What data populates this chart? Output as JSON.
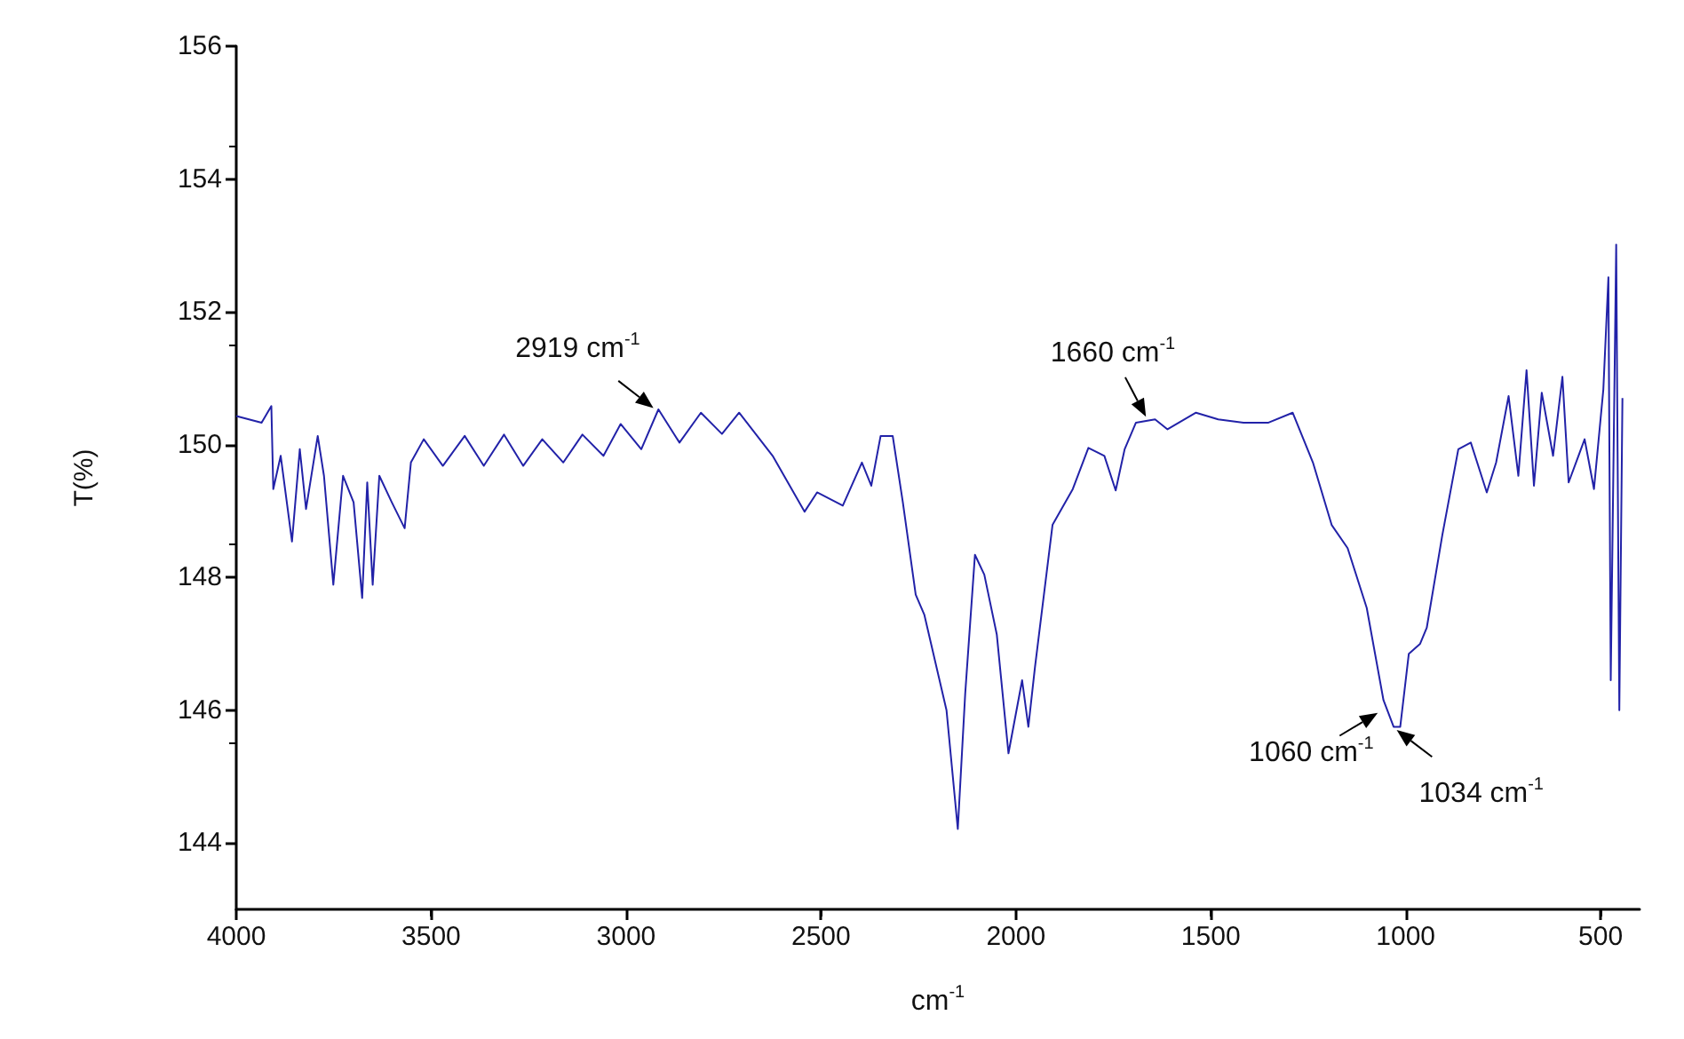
{
  "chart_data": {
    "type": "line",
    "xlabel": "cm$^{-1}$",
    "ylabel": "T(%)",
    "xlim": [
      4000,
      400
    ],
    "ylim": [
      143,
      156
    ],
    "xticks": [
      4000,
      3500,
      3000,
      2500,
      2000,
      1500,
      1000,
      500
    ],
    "yticks": [
      144,
      146,
      148,
      150,
      152,
      154,
      156
    ],
    "grid": false,
    "marker": "none",
    "line_style": "solid",
    "annotations": [
      {
        "text": "2919 cm$^{-1}$",
        "x": 2919,
        "y": 150.5
      },
      {
        "text": "1660 cm$^{-1}$",
        "x": 1660,
        "y": 150.35
      },
      {
        "text": "1060 cm$^{-1}$",
        "x": 1060,
        "y": 146.0
      },
      {
        "text": "1034 cm$^{-1}$",
        "x": 1034,
        "y": 145.75
      }
    ],
    "series": [
      {
        "color": "#2222a8",
        "x": [
          4000,
          3935,
          3910,
          3905,
          3886,
          3857,
          3837,
          3821,
          3791,
          3775,
          3751,
          3726,
          3699,
          3677,
          3664,
          3650,
          3633,
          3601,
          3568,
          3552,
          3519,
          3470,
          3414,
          3365,
          3313,
          3264,
          3215,
          3161,
          3112,
          3058,
          3014,
          2961,
          2917,
          2863,
          2808,
          2754,
          2710,
          2624,
          2542,
          2510,
          2444,
          2395,
          2371,
          2347,
          2316,
          2290,
          2257,
          2235,
          2178,
          2149,
          2130,
          2105,
          2081,
          2049,
          2019,
          1984,
          1968,
          1951,
          1906,
          1854,
          1814,
          1773,
          1744,
          1721,
          1692,
          1643,
          1611,
          1538,
          1481,
          1416,
          1352,
          1290,
          1238,
          1190,
          1149,
          1100,
          1057,
          1031,
          1014,
          992,
          963,
          946,
          906,
          865,
          833,
          792,
          768,
          736,
          711,
          690,
          671,
          651,
          622,
          598,
          582,
          541,
          517,
          493,
          480,
          474,
          460,
          452,
          444
        ],
        "values": [
          150.43,
          150.33,
          150.58,
          149.33,
          149.83,
          148.54,
          149.93,
          149.03,
          150.13,
          149.53,
          147.89,
          149.53,
          149.13,
          147.69,
          149.43,
          147.89,
          149.53,
          149.13,
          148.74,
          149.73,
          150.08,
          149.68,
          150.13,
          149.68,
          150.15,
          149.68,
          150.08,
          149.73,
          150.15,
          149.83,
          150.31,
          149.93,
          150.53,
          150.03,
          150.48,
          150.16,
          150.48,
          149.83,
          148.99,
          149.28,
          149.08,
          149.73,
          149.38,
          150.13,
          150.13,
          149.13,
          147.74,
          147.44,
          146.0,
          144.21,
          146.25,
          148.34,
          148.04,
          147.14,
          145.35,
          146.45,
          145.75,
          146.65,
          148.79,
          149.33,
          149.95,
          149.83,
          149.31,
          149.93,
          150.33,
          150.38,
          150.23,
          150.48,
          150.38,
          150.33,
          150.33,
          150.48,
          149.73,
          148.79,
          148.44,
          147.54,
          146.15,
          145.75,
          145.75,
          146.85,
          147.0,
          147.24,
          148.64,
          149.93,
          150.03,
          149.28,
          149.73,
          150.73,
          149.53,
          151.12,
          149.38,
          150.78,
          149.83,
          151.02,
          149.43,
          150.08,
          149.33,
          150.83,
          152.52,
          146.45,
          153.01,
          146.0,
          150.7
        ]
      }
    ]
  }
}
